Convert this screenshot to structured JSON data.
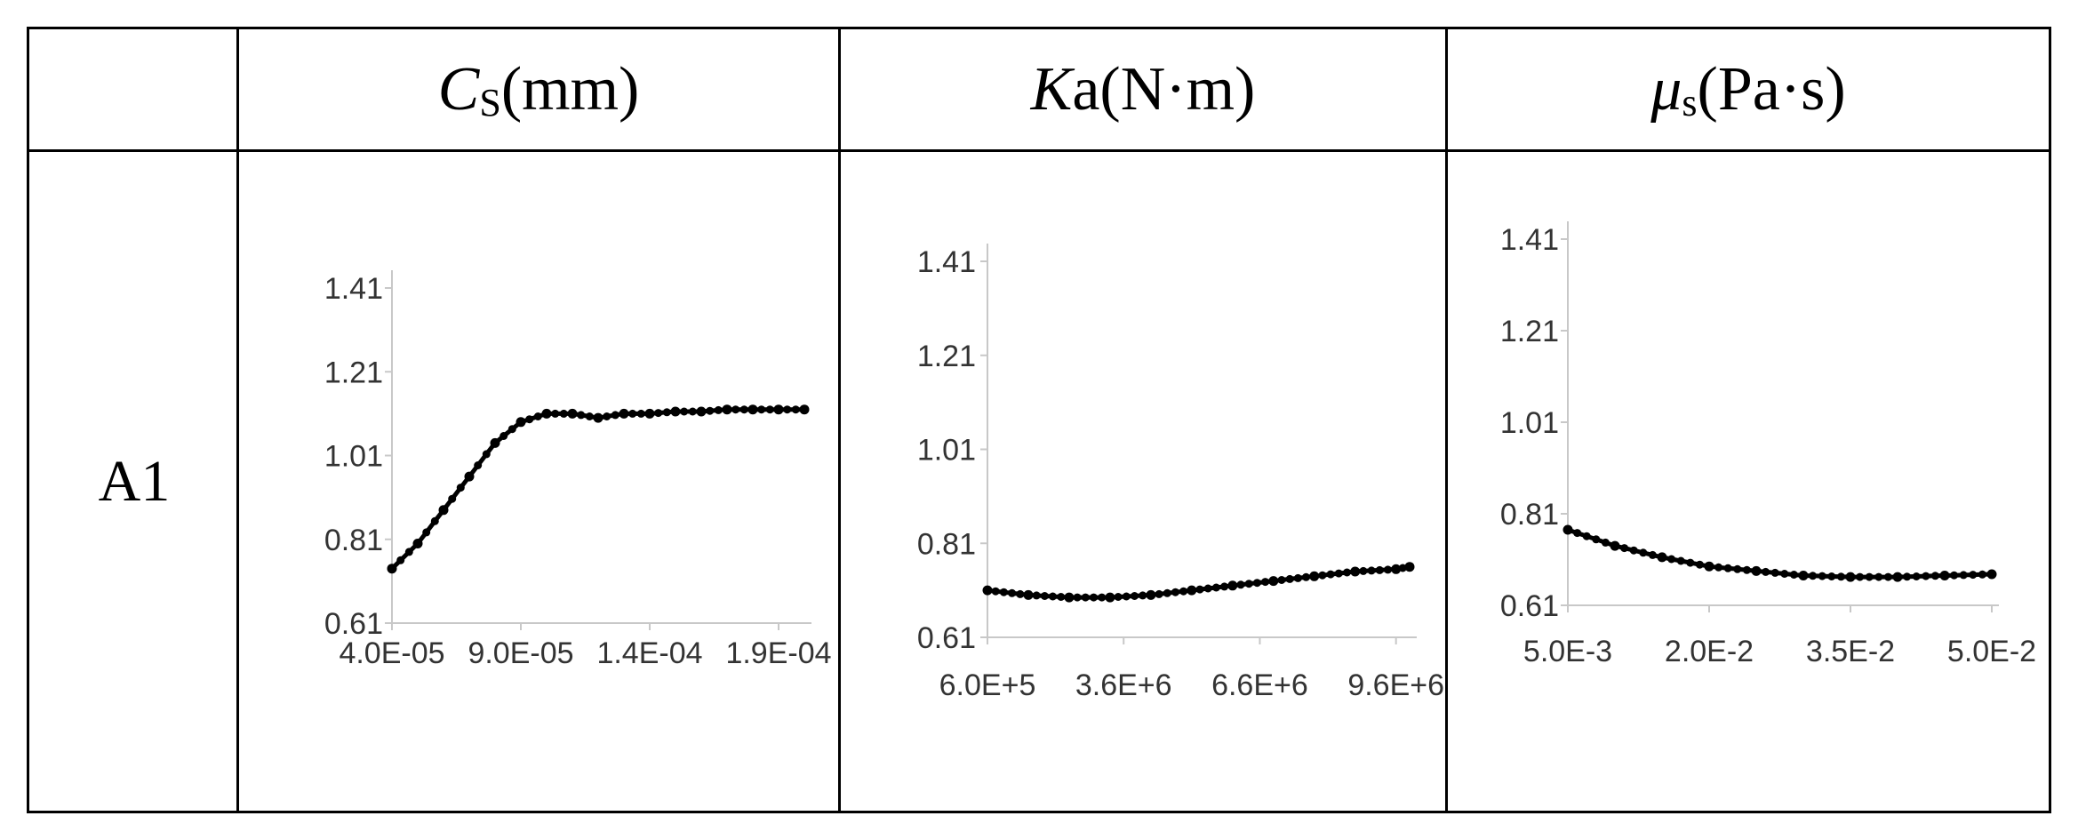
{
  "table": {
    "header_cells": [
      {
        "var": "C",
        "sub": "S",
        "unit": "(mm)"
      },
      {
        "var": "K",
        "sub": "",
        "unit": "a(N·m)"
      },
      {
        "var": "μ",
        "sub": "s",
        "unit": "(Pa·s)"
      }
    ],
    "row_label": "A1"
  },
  "chart_data": [
    {
      "type": "line",
      "title": "",
      "xlabel": "",
      "ylabel": "",
      "xlim": [
        4e-05,
        0.0002
      ],
      "ylim": [
        0.61,
        1.41
      ],
      "yticks": [
        0.61,
        0.81,
        1.01,
        1.21,
        1.41
      ],
      "ytick_labels": [
        "0.61",
        "0.81",
        "1.01",
        "1.21",
        "1.41"
      ],
      "xticks": [
        4e-05,
        9e-05,
        0.00014,
        0.00019
      ],
      "xtick_labels": [
        "4.0E-05",
        "9.0E-05",
        "1.4E-04",
        "1.9E-04"
      ],
      "grid": false,
      "marker": "dot",
      "color": "#000000",
      "series": [
        {
          "x": [
            4e-05,
            5e-05,
            6e-05,
            7e-05,
            8e-05,
            9e-05,
            0.0001,
            0.00011,
            0.00012,
            0.00013,
            0.00014,
            0.00015,
            0.00016,
            0.00017,
            0.00018,
            0.00019,
            0.0002
          ],
          "values": [
            0.74,
            0.8,
            0.88,
            0.96,
            1.04,
            1.09,
            1.11,
            1.11,
            1.1,
            1.11,
            1.11,
            1.115,
            1.115,
            1.12,
            1.12,
            1.12,
            1.12
          ]
        }
      ]
    },
    {
      "type": "line",
      "title": "",
      "xlabel": "",
      "ylabel": "",
      "xlim": [
        600000,
        9900000
      ],
      "ylim": [
        0.61,
        1.41
      ],
      "yticks": [
        0.61,
        0.81,
        1.01,
        1.21,
        1.41
      ],
      "ytick_labels": [
        "0.61",
        "0.81",
        "1.01",
        "1.21",
        "1.41"
      ],
      "xticks": [
        600000,
        3600000,
        6600000,
        9600000
      ],
      "xtick_labels": [
        "6.0E+5",
        "3.6E+6",
        "6.6E+6",
        "9.6E+6"
      ],
      "grid": false,
      "marker": "dot",
      "color": "#000000",
      "series": [
        {
          "x": [
            600000,
            1500000,
            2400000,
            3300000,
            4200000,
            5100000,
            6000000,
            6900000,
            7800000,
            8700000,
            9600000,
            9900000
          ],
          "values": [
            0.71,
            0.7,
            0.695,
            0.695,
            0.7,
            0.71,
            0.72,
            0.73,
            0.74,
            0.75,
            0.755,
            0.76
          ]
        }
      ]
    },
    {
      "type": "line",
      "title": "",
      "xlabel": "",
      "ylabel": "",
      "xlim": [
        0.005,
        0.05
      ],
      "ylim": [
        0.61,
        1.41
      ],
      "yticks": [
        0.61,
        0.81,
        1.01,
        1.21,
        1.41
      ],
      "ytick_labels": [
        "0.61",
        "0.81",
        "1.01",
        "1.21",
        "1.41"
      ],
      "xticks": [
        0.005,
        0.02,
        0.035,
        0.05
      ],
      "xtick_labels": [
        "5.0E-3",
        "2.0E-2",
        "3.5E-2",
        "5.0E-2"
      ],
      "grid": false,
      "marker": "dot",
      "color": "#000000",
      "series": [
        {
          "x": [
            0.005,
            0.01,
            0.015,
            0.02,
            0.025,
            0.03,
            0.035,
            0.04,
            0.045,
            0.05
          ],
          "values": [
            0.775,
            0.74,
            0.715,
            0.695,
            0.685,
            0.675,
            0.672,
            0.672,
            0.675,
            0.678
          ]
        }
      ]
    }
  ]
}
